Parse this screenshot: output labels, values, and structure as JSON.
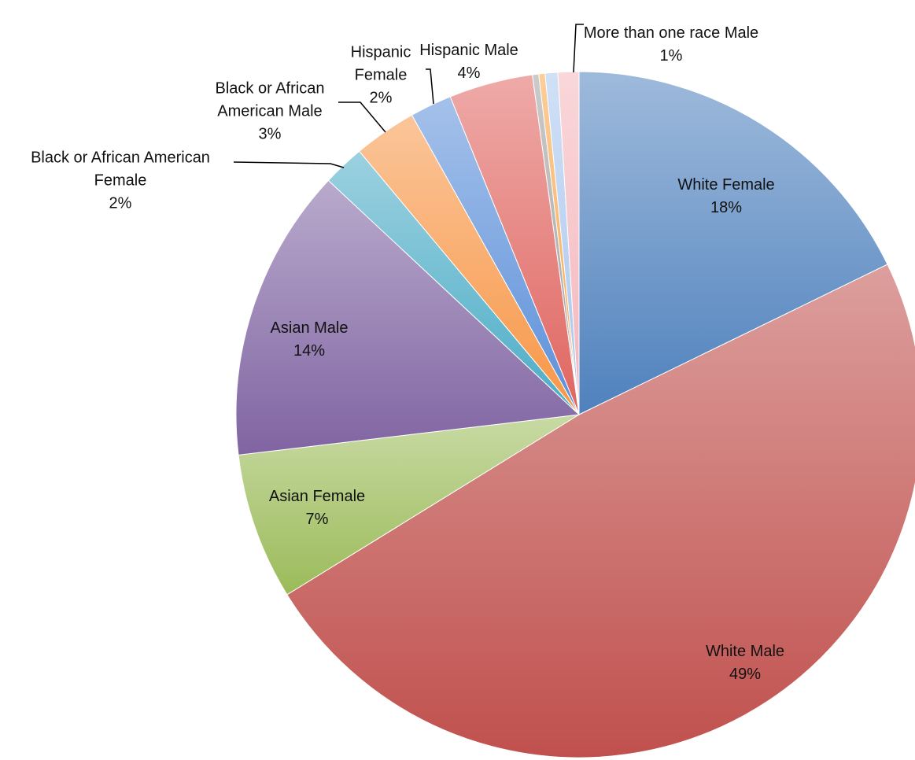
{
  "chart_data": {
    "type": "pie",
    "categories": [
      "White Female",
      "White Male",
      "Asian Female",
      "Asian Male",
      "Black or African American Female",
      "Black or African American Male",
      "Hispanic Female",
      "Hispanic Male",
      null,
      null,
      null,
      "More than one race Male"
    ],
    "values": [
      18,
      49,
      7,
      14,
      2,
      3,
      2,
      4,
      0.3,
      0.3,
      0.6,
      1
    ],
    "value_labels": [
      "18%",
      "49%",
      "7%",
      "14%",
      "2%",
      "3%",
      "2%",
      "4%",
      null,
      null,
      null,
      "1%"
    ],
    "colors": [
      "#4f81bd",
      "#c0504d",
      "#9bbb59",
      "#8064a2",
      "#4bacc6",
      "#f79646",
      "#5b8fd9",
      "#e06560",
      "#a0a0a0",
      "#f7a64a",
      "#a9c6ee",
      "#f4b6bb"
    ]
  }
}
